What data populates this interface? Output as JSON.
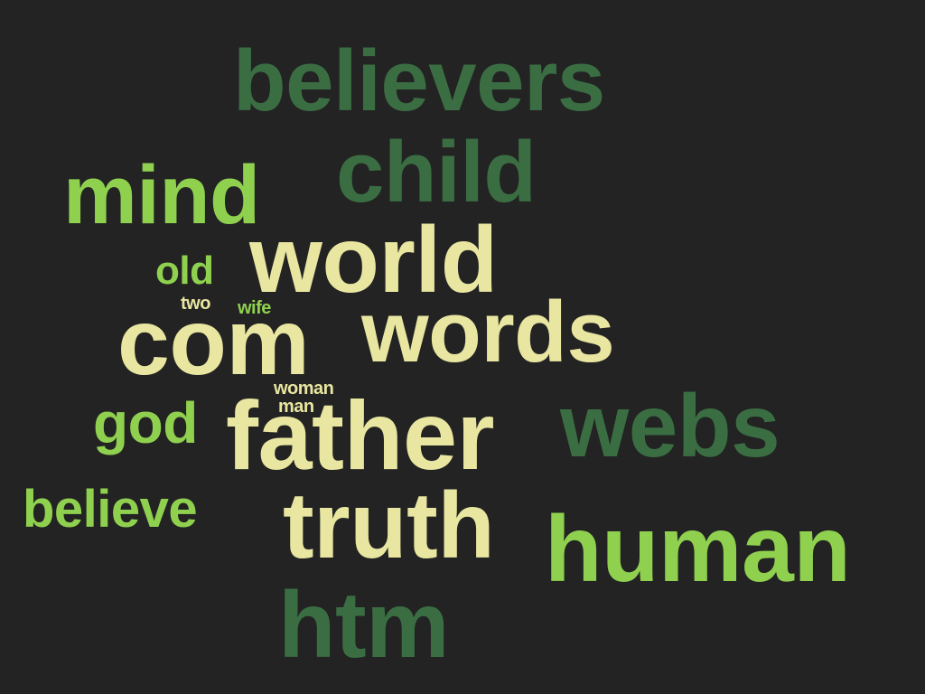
{
  "palette": {
    "background": "#232323",
    "dark_green": "#3a6e42",
    "lime_green": "#8fd14f",
    "cream": "#e8e6a0"
  },
  "words": {
    "believers": "believers",
    "child": "child",
    "mind": "mind",
    "old": "old",
    "world": "world",
    "two": "two",
    "wife": "wife",
    "com": "com",
    "words": "words",
    "woman": "woman",
    "man": "man",
    "god": "god",
    "father": "father",
    "webs": "webs",
    "believe": "believe",
    "truth": "truth",
    "human": "human",
    "htm": "htm"
  }
}
